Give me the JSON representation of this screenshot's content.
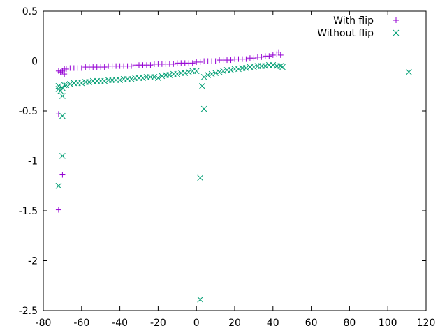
{
  "chart_data": {
    "type": "scatter",
    "title": "",
    "xlabel": "",
    "ylabel": "",
    "xlim": [
      -80,
      120
    ],
    "ylim": [
      -2.5,
      0.5
    ],
    "grid": false,
    "legend_position": "top-right",
    "x_ticks": [
      "-80",
      "-60",
      "-40",
      "-20",
      "0",
      "20",
      "40",
      "60",
      "80",
      "100",
      "120"
    ],
    "y_ticks": [
      "0.5",
      "0",
      "-0.5",
      "-1",
      "-1.5",
      "-2",
      "-2.5"
    ],
    "series": [
      {
        "name": "With flip",
        "marker": "plus",
        "color": "#9400d3",
        "points": [
          [
            -72,
            -0.1
          ],
          [
            -72,
            -0.53
          ],
          [
            -72,
            -1.49
          ],
          [
            -71,
            -0.11
          ],
          [
            -70,
            -1.14
          ],
          [
            -70,
            -0.1
          ],
          [
            -69,
            -0.13
          ],
          [
            -69,
            -0.08
          ],
          [
            -68,
            -0.08
          ],
          [
            -66,
            -0.07
          ],
          [
            -64,
            -0.07
          ],
          [
            -62,
            -0.07
          ],
          [
            -60,
            -0.07
          ],
          [
            -58,
            -0.06
          ],
          [
            -56,
            -0.06
          ],
          [
            -54,
            -0.06
          ],
          [
            -52,
            -0.06
          ],
          [
            -50,
            -0.06
          ],
          [
            -48,
            -0.06
          ],
          [
            -46,
            -0.05
          ],
          [
            -44,
            -0.05
          ],
          [
            -42,
            -0.05
          ],
          [
            -40,
            -0.05
          ],
          [
            -38,
            -0.05
          ],
          [
            -36,
            -0.05
          ],
          [
            -34,
            -0.05
          ],
          [
            -32,
            -0.04
          ],
          [
            -30,
            -0.04
          ],
          [
            -28,
            -0.04
          ],
          [
            -26,
            -0.04
          ],
          [
            -24,
            -0.04
          ],
          [
            -22,
            -0.03
          ],
          [
            -20,
            -0.03
          ],
          [
            -18,
            -0.03
          ],
          [
            -16,
            -0.03
          ],
          [
            -14,
            -0.03
          ],
          [
            -12,
            -0.03
          ],
          [
            -10,
            -0.02
          ],
          [
            -8,
            -0.02
          ],
          [
            -6,
            -0.02
          ],
          [
            -4,
            -0.02
          ],
          [
            -2,
            -0.02
          ],
          [
            0,
            -0.01
          ],
          [
            2,
            -0.01
          ],
          [
            4,
            0.0
          ],
          [
            6,
            0.0
          ],
          [
            8,
            0.0
          ],
          [
            10,
            0.0
          ],
          [
            12,
            0.01
          ],
          [
            14,
            0.01
          ],
          [
            16,
            0.01
          ],
          [
            18,
            0.01
          ],
          [
            20,
            0.02
          ],
          [
            22,
            0.02
          ],
          [
            24,
            0.02
          ],
          [
            26,
            0.02
          ],
          [
            28,
            0.03
          ],
          [
            30,
            0.03
          ],
          [
            32,
            0.04
          ],
          [
            34,
            0.04
          ],
          [
            36,
            0.05
          ],
          [
            38,
            0.05
          ],
          [
            40,
            0.06
          ],
          [
            42,
            0.07
          ],
          [
            43,
            0.09
          ],
          [
            44,
            0.06
          ]
        ]
      },
      {
        "name": "Without flip",
        "marker": "cross",
        "color": "#009e73",
        "points": [
          [
            -72,
            -0.25
          ],
          [
            -72,
            -0.28
          ],
          [
            -72,
            -1.25
          ],
          [
            -71,
            -0.3
          ],
          [
            -70,
            -0.55
          ],
          [
            -70,
            -0.95
          ],
          [
            -70,
            -0.35
          ],
          [
            -70,
            -0.27
          ],
          [
            -69,
            -0.24
          ],
          [
            -68,
            -0.24
          ],
          [
            -66,
            -0.23
          ],
          [
            -64,
            -0.22
          ],
          [
            -62,
            -0.22
          ],
          [
            -60,
            -0.22
          ],
          [
            -58,
            -0.21
          ],
          [
            -56,
            -0.21
          ],
          [
            -54,
            -0.2
          ],
          [
            -52,
            -0.2
          ],
          [
            -50,
            -0.2
          ],
          [
            -48,
            -0.2
          ],
          [
            -46,
            -0.19
          ],
          [
            -44,
            -0.19
          ],
          [
            -42,
            -0.19
          ],
          [
            -40,
            -0.19
          ],
          [
            -38,
            -0.18
          ],
          [
            -36,
            -0.18
          ],
          [
            -34,
            -0.18
          ],
          [
            -32,
            -0.17
          ],
          [
            -30,
            -0.17
          ],
          [
            -28,
            -0.17
          ],
          [
            -26,
            -0.16
          ],
          [
            -24,
            -0.16
          ],
          [
            -22,
            -0.16
          ],
          [
            -20,
            -0.17
          ],
          [
            -18,
            -0.15
          ],
          [
            -16,
            -0.14
          ],
          [
            -14,
            -0.14
          ],
          [
            -12,
            -0.13
          ],
          [
            -10,
            -0.13
          ],
          [
            -8,
            -0.12
          ],
          [
            -6,
            -0.12
          ],
          [
            -4,
            -0.11
          ],
          [
            -2,
            -0.1
          ],
          [
            0,
            -0.1
          ],
          [
            2,
            -1.17
          ],
          [
            2,
            -2.39
          ],
          [
            3,
            -0.25
          ],
          [
            4,
            -0.48
          ],
          [
            4,
            -0.16
          ],
          [
            6,
            -0.14
          ],
          [
            8,
            -0.13
          ],
          [
            10,
            -0.12
          ],
          [
            12,
            -0.11
          ],
          [
            14,
            -0.1
          ],
          [
            16,
            -0.09
          ],
          [
            18,
            -0.09
          ],
          [
            20,
            -0.08
          ],
          [
            22,
            -0.08
          ],
          [
            24,
            -0.07
          ],
          [
            26,
            -0.07
          ],
          [
            28,
            -0.06
          ],
          [
            30,
            -0.06
          ],
          [
            32,
            -0.05
          ],
          [
            34,
            -0.05
          ],
          [
            36,
            -0.05
          ],
          [
            38,
            -0.04
          ],
          [
            40,
            -0.04
          ],
          [
            42,
            -0.05
          ],
          [
            44,
            -0.05
          ],
          [
            45,
            -0.06
          ],
          [
            111,
            -0.11
          ]
        ]
      }
    ]
  }
}
